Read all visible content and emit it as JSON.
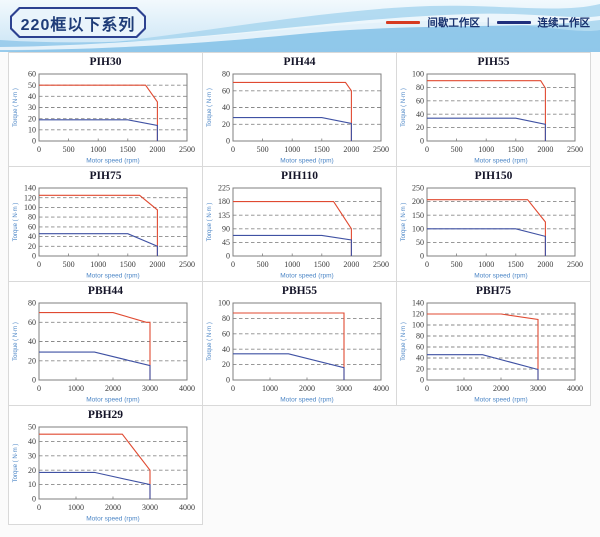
{
  "header": {
    "title": "220框以下系列",
    "legend": {
      "intermittent": "间歇工作区",
      "separator": "|",
      "continuous": "连续工作区",
      "intermittent_color": "#d63b22",
      "continuous_color": "#1f2f7d"
    }
  },
  "colors": {
    "intermittent_line": "#e04a31",
    "continuous_line": "#3f51a3",
    "grid": "#8a8a8a",
    "box": "#7f7f7f"
  },
  "chart_data": [
    {
      "type": "line",
      "name": "PIH30",
      "xlabel": "Motor speed (rpm)",
      "ylabel": "Torque ( N·m )",
      "xlim": [
        0,
        2500
      ],
      "x_step": 500,
      "ylim": [
        0,
        60
      ],
      "y_step": 10,
      "grid": "dashed-horizontal",
      "series": [
        {
          "name": "间歇工作区",
          "color": "red",
          "points": [
            [
              0,
              50
            ],
            [
              1800,
              50
            ],
            [
              2000,
              35
            ],
            [
              2000,
              0
            ]
          ]
        },
        {
          "name": "连续工作区",
          "color": "blue",
          "points": [
            [
              0,
              19
            ],
            [
              1500,
              19
            ],
            [
              2000,
              14
            ],
            [
              2000,
              0
            ]
          ]
        }
      ]
    },
    {
      "type": "line",
      "name": "PIH44",
      "xlabel": "Motor speed (rpm)",
      "ylabel": "Torque ( N·m )",
      "xlim": [
        0,
        2500
      ],
      "x_step": 500,
      "ylim": [
        0,
        80
      ],
      "y_step": 20,
      "grid": "dashed-horizontal",
      "series": [
        {
          "name": "间歇工作区",
          "color": "red",
          "points": [
            [
              0,
              70
            ],
            [
              1900,
              70
            ],
            [
              2000,
              60
            ],
            [
              2000,
              0
            ]
          ]
        },
        {
          "name": "连续工作区",
          "color": "blue",
          "points": [
            [
              0,
              28
            ],
            [
              1500,
              28
            ],
            [
              2000,
              21
            ],
            [
              2000,
              0
            ]
          ]
        }
      ]
    },
    {
      "type": "line",
      "name": "PIH55",
      "xlabel": "Motor speed (rpm)",
      "ylabel": "Torque ( N·m )",
      "xlim": [
        0,
        2500
      ],
      "x_step": 500,
      "ylim": [
        0,
        100
      ],
      "y_step": 20,
      "grid": "dashed-horizontal",
      "series": [
        {
          "name": "间歇工作区",
          "color": "red",
          "points": [
            [
              0,
              90
            ],
            [
              1920,
              90
            ],
            [
              2000,
              79
            ],
            [
              2000,
              0
            ]
          ]
        },
        {
          "name": "连续工作区",
          "color": "blue",
          "points": [
            [
              0,
              34
            ],
            [
              1500,
              34
            ],
            [
              2000,
              25
            ],
            [
              2000,
              0
            ]
          ]
        }
      ]
    },
    {
      "type": "line",
      "name": "PIH75",
      "xlabel": "Motor speed (rpm)",
      "ylabel": "Torque ( N·m )",
      "xlim": [
        0,
        2500
      ],
      "x_step": 500,
      "ylim": [
        0,
        140
      ],
      "y_step": 20,
      "grid": "dashed-horizontal",
      "series": [
        {
          "name": "间歇工作区",
          "color": "red",
          "points": [
            [
              0,
              125
            ],
            [
              1700,
              125
            ],
            [
              2000,
              95
            ],
            [
              2000,
              0
            ]
          ]
        },
        {
          "name": "连续工作区",
          "color": "blue",
          "points": [
            [
              0,
              46
            ],
            [
              1500,
              46
            ],
            [
              2000,
              20
            ],
            [
              2000,
              0
            ]
          ]
        }
      ]
    },
    {
      "type": "line",
      "name": "PIH110",
      "xlabel": "Motor speed (rpm)",
      "ylabel": "Torque ( N·m )",
      "xlim": [
        0,
        2500
      ],
      "x_step": 500,
      "ylim": [
        0,
        225
      ],
      "y_step": 45,
      "grid": "dashed-horizontal",
      "series": [
        {
          "name": "间歇工作区",
          "color": "red",
          "points": [
            [
              0,
              180
            ],
            [
              1700,
              180
            ],
            [
              2000,
              90
            ],
            [
              2000,
              0
            ]
          ]
        },
        {
          "name": "连续工作区",
          "color": "blue",
          "points": [
            [
              0,
              68
            ],
            [
              1500,
              68
            ],
            [
              2000,
              53
            ],
            [
              2000,
              0
            ]
          ]
        }
      ]
    },
    {
      "type": "line",
      "name": "PIH150",
      "xlabel": "Motor speed (rpm)",
      "ylabel": "Torque ( N·m )",
      "xlim": [
        0,
        2500
      ],
      "x_step": 500,
      "ylim": [
        0,
        250
      ],
      "y_step": 50,
      "grid": "dashed-horizontal",
      "series": [
        {
          "name": "间歇工作区",
          "color": "red",
          "points": [
            [
              0,
              207
            ],
            [
              1700,
              207
            ],
            [
              2000,
              125
            ],
            [
              2000,
              0
            ]
          ]
        },
        {
          "name": "连续工作区",
          "color": "blue",
          "points": [
            [
              0,
              100
            ],
            [
              1500,
              100
            ],
            [
              2000,
              72
            ],
            [
              2000,
              0
            ]
          ]
        }
      ]
    },
    {
      "type": "line",
      "name": "PBH44",
      "xlabel": "Motor speed (rpm)",
      "ylabel": "Torque ( N·m )",
      "xlim": [
        0,
        4000
      ],
      "x_step": 1000,
      "ylim": [
        0,
        80
      ],
      "y_step": 20,
      "grid": "dashed-horizontal",
      "series": [
        {
          "name": "间歇工作区",
          "color": "red",
          "points": [
            [
              0,
              70
            ],
            [
              2000,
              70
            ],
            [
              2900,
              60
            ],
            [
              3000,
              60
            ],
            [
              3000,
              0
            ]
          ]
        },
        {
          "name": "连续工作区",
          "color": "blue",
          "points": [
            [
              0,
              29
            ],
            [
              1500,
              29
            ],
            [
              3000,
              15
            ],
            [
              3000,
              0
            ]
          ]
        }
      ]
    },
    {
      "type": "line",
      "name": "PBH55",
      "xlabel": "Motor speed (rpm)",
      "ylabel": "Torque ( N·m )",
      "xlim": [
        0,
        4000
      ],
      "x_step": 1000,
      "ylim": [
        0,
        100
      ],
      "y_step": 20,
      "grid": "dashed-horizontal",
      "series": [
        {
          "name": "间歇工作区",
          "color": "red",
          "points": [
            [
              0,
              87
            ],
            [
              3000,
              87
            ],
            [
              3000,
              0
            ]
          ]
        },
        {
          "name": "连续工作区",
          "color": "blue",
          "points": [
            [
              0,
              34
            ],
            [
              1500,
              34
            ],
            [
              3000,
              16
            ],
            [
              3000,
              0
            ]
          ]
        }
      ]
    },
    {
      "type": "line",
      "name": "PBH75",
      "xlabel": "Motor speed (rpm)",
      "ylabel": "Torque ( N·m )",
      "xlim": [
        0,
        4000
      ],
      "x_step": 1000,
      "ylim": [
        0,
        140
      ],
      "y_step": 20,
      "grid": "dashed-horizontal",
      "series": [
        {
          "name": "间歇工作区",
          "color": "red",
          "points": [
            [
              0,
              120
            ],
            [
              2000,
              120
            ],
            [
              3000,
              110
            ],
            [
              3000,
              0
            ]
          ]
        },
        {
          "name": "连续工作区",
          "color": "blue",
          "points": [
            [
              0,
              46
            ],
            [
              1500,
              46
            ],
            [
              3000,
              19
            ],
            [
              3000,
              0
            ]
          ]
        }
      ]
    },
    {
      "type": "line",
      "name": "PBH29",
      "xlabel": "Motor speed (rpm)",
      "ylabel": "Torque ( N·m )",
      "xlim": [
        0,
        4000
      ],
      "x_step": 1000,
      "ylim": [
        0,
        50
      ],
      "y_step": 10,
      "grid": "dashed-horizontal",
      "series": [
        {
          "name": "间歇工作区",
          "color": "red",
          "points": [
            [
              0,
              45
            ],
            [
              2250,
              45
            ],
            [
              3000,
              20
            ],
            [
              3000,
              0
            ]
          ]
        },
        {
          "name": "连续工作区",
          "color": "blue",
          "points": [
            [
              0,
              18.5
            ],
            [
              1500,
              18.5
            ],
            [
              3000,
              10
            ],
            [
              3000,
              0
            ]
          ]
        }
      ]
    }
  ]
}
